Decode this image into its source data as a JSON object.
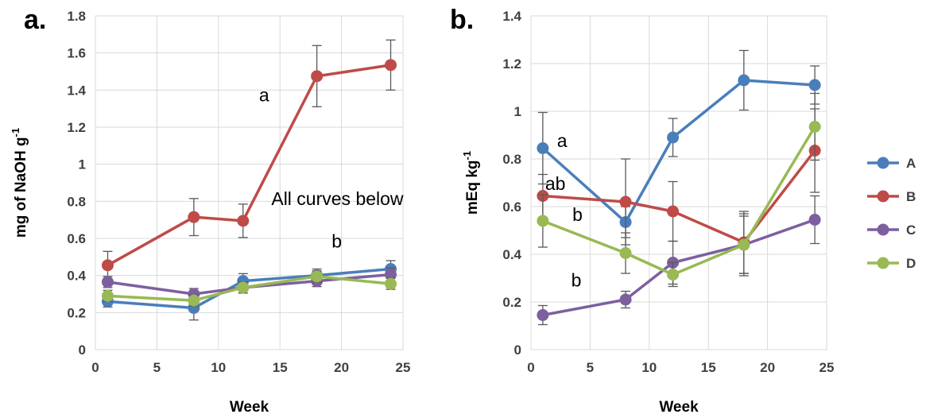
{
  "colors": {
    "A": "#4a7ebb",
    "B": "#be4b48",
    "C": "#7d5fa0",
    "D": "#98b954",
    "grid": "#d9d9d9",
    "errorbar": "#595959"
  },
  "legend": {
    "placement": "right",
    "entries": [
      "A",
      "B",
      "C",
      "D"
    ]
  },
  "chart_data": [
    {
      "type": "line",
      "panel_label": "a.",
      "xlabel": "Week",
      "ylabel": "mg of NaOH g",
      "ylabel_sup": "-1",
      "xlim": [
        0,
        25
      ],
      "ylim": [
        0,
        1.8
      ],
      "xticks": [
        "0",
        "5",
        "10",
        "15",
        "20",
        "25"
      ],
      "yticks": [
        "0",
        "0.2",
        "0.4",
        "0.6",
        "0.8",
        "1",
        "1.2",
        "1.4",
        "1.6",
        "1.8"
      ],
      "grid": true,
      "x": [
        1,
        8,
        12,
        18,
        24
      ],
      "series": [
        {
          "name": "A",
          "values": [
            0.26,
            0.225,
            0.37,
            0.4,
            0.435
          ],
          "errors": [
            0.03,
            0.065,
            0.04,
            0.035,
            0.045
          ]
        },
        {
          "name": "B",
          "values": [
            0.455,
            0.715,
            0.695,
            1.475,
            1.535
          ],
          "errors": [
            0.075,
            0.1,
            0.09,
            0.165,
            0.135
          ]
        },
        {
          "name": "C",
          "values": [
            0.365,
            0.3,
            0.335,
            0.37,
            0.405
          ],
          "errors": [
            0.03,
            0.03,
            0.03,
            0.03,
            0.035
          ]
        },
        {
          "name": "D",
          "values": [
            0.29,
            0.265,
            0.335,
            0.395,
            0.355
          ],
          "errors": [
            0.03,
            0.03,
            0.03,
            0.03,
            0.03
          ]
        }
      ],
      "annotations": [
        {
          "text": "a",
          "x": 13.3,
          "y": 1.34
        },
        {
          "text": "All curves below",
          "x": 14.3,
          "y": 0.78
        },
        {
          "text": "b",
          "x": 19.2,
          "y": 0.55
        }
      ]
    },
    {
      "type": "line",
      "panel_label": "b.",
      "xlabel": "Week",
      "ylabel": "mEq kg",
      "ylabel_sup": "-1",
      "xlim": [
        0,
        25
      ],
      "ylim": [
        0,
        1.4
      ],
      "xticks": [
        "0",
        "5",
        "10",
        "15",
        "20",
        "25"
      ],
      "yticks": [
        "0",
        "0.2",
        "0.4",
        "0.6",
        "0.8",
        "1",
        "1.2",
        "1.4"
      ],
      "grid": true,
      "x": [
        1,
        8,
        12,
        18,
        24
      ],
      "series": [
        {
          "name": "A",
          "values": [
            0.845,
            0.535,
            0.89,
            1.13,
            1.11
          ],
          "errors": [
            0.15,
            0.065,
            0.08,
            0.125,
            0.08
          ]
        },
        {
          "name": "B",
          "values": [
            0.645,
            0.62,
            0.58,
            0.45,
            0.835
          ],
          "errors": [
            0.09,
            0.18,
            0.125,
            0.13,
            0.175
          ]
        },
        {
          "name": "C",
          "values": [
            0.145,
            0.21,
            0.365,
            0.44,
            0.545
          ],
          "errors": [
            0.04,
            0.035,
            0.09,
            0.13,
            0.1
          ]
        },
        {
          "name": "D",
          "values": [
            0.54,
            0.405,
            0.315,
            0.44,
            0.935
          ],
          "errors": [
            0.11,
            0.085,
            0.05,
            0.12,
            0.14
          ]
        }
      ],
      "annotations": [
        {
          "text": "a",
          "x": 2.2,
          "y": 0.85
        },
        {
          "text": "ab",
          "x": 1.2,
          "y": 0.67
        },
        {
          "text": "b",
          "x": 3.5,
          "y": 0.54
        },
        {
          "text": "b",
          "x": 3.4,
          "y": 0.265
        }
      ]
    }
  ]
}
